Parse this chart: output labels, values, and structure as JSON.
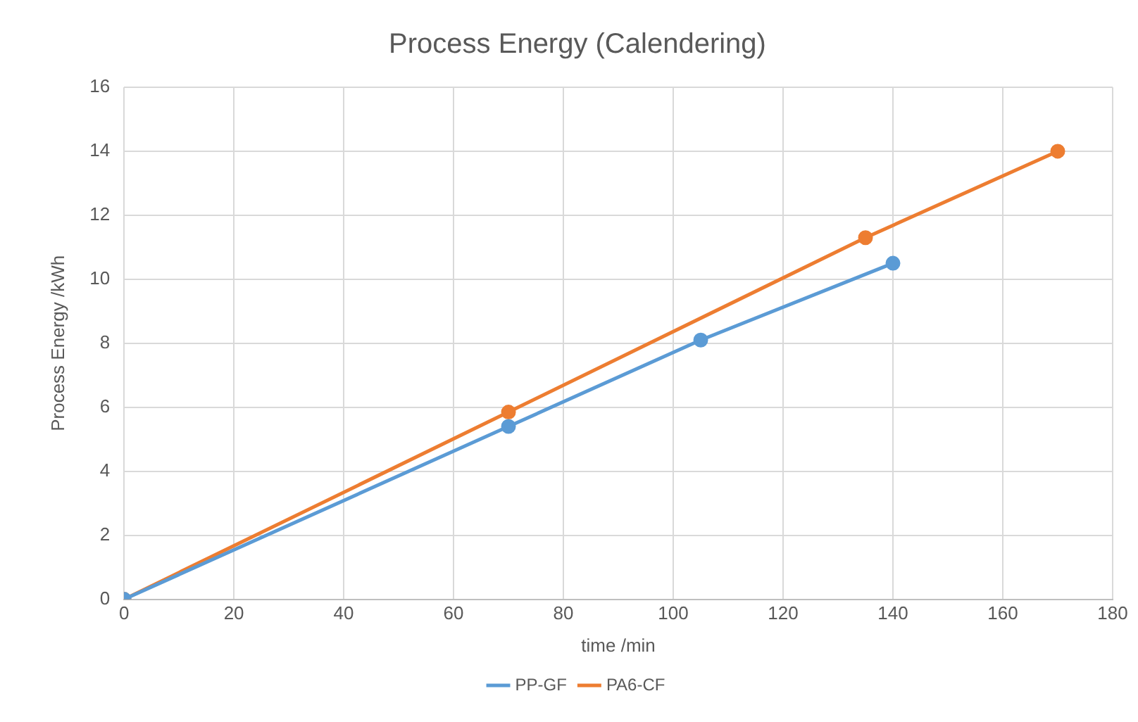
{
  "chart_data": {
    "type": "line",
    "title": "Process Energy (Calendering)",
    "xlabel": "time /min",
    "ylabel": "Process Energy /kWh",
    "xlim": [
      0,
      180
    ],
    "xticks": [
      0,
      20,
      40,
      60,
      80,
      100,
      120,
      140,
      160,
      180
    ],
    "ylim": [
      0,
      16
    ],
    "yticks": [
      0,
      2,
      4,
      6,
      8,
      10,
      12,
      14,
      16
    ],
    "grid": true,
    "legend": "bottom",
    "marker": "circle",
    "line_style": "solid",
    "series": [
      {
        "name": "PP-GF",
        "color": "#5b9bd5",
        "x": [
          0,
          70,
          105,
          140
        ],
        "values": [
          0,
          5.4,
          8.1,
          10.5
        ]
      },
      {
        "name": "PA6-CF",
        "color": "#ed7d31",
        "x": [
          0,
          70,
          135,
          170
        ],
        "values": [
          0,
          5.85,
          11.3,
          14
        ]
      }
    ]
  }
}
